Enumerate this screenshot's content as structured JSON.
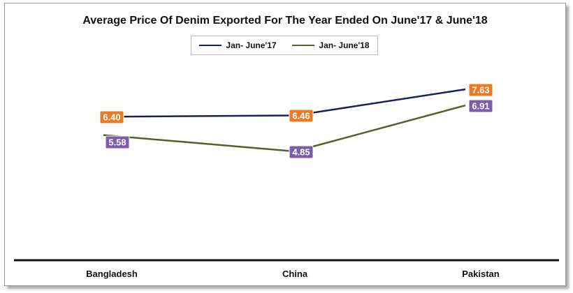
{
  "chart_data": {
    "type": "line",
    "title": "Average Price Of Denim Exported For The Year Ended On June'17 & June'18",
    "xlabel": "",
    "ylabel": "",
    "categories": [
      "Bangladesh",
      "China",
      "Pakistan"
    ],
    "series": [
      {
        "name": "Jan- June'17",
        "values": [
          6.4,
          6.46,
          7.63
        ],
        "line_color": "#1b1f5a",
        "label_color": "#e97b25"
      },
      {
        "name": "Jan- June'18",
        "values": [
          5.58,
          4.85,
          6.91
        ],
        "line_color": "#4f6228",
        "label_color": "#7b5ea7"
      }
    ],
    "value_labels": [
      [
        "6.40",
        "6.46",
        "7.63"
      ],
      [
        "5.58",
        "4.85",
        "6.91"
      ]
    ],
    "ylim": [
      0,
      9
    ],
    "grid": false,
    "legend_position": "top-center"
  }
}
